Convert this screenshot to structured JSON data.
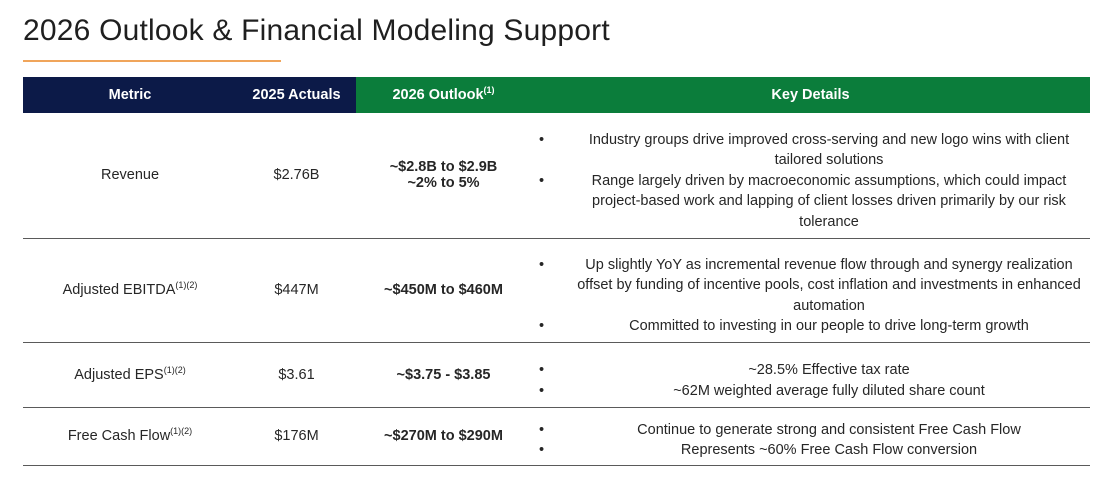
{
  "page": {
    "title": "2026 Outlook & Financial Modeling Support"
  },
  "colors": {
    "header_navy": "#0c1a48",
    "header_green": "#0b7d3b",
    "title_rule": "#f0a55b"
  },
  "table": {
    "headers": {
      "metric": "Metric",
      "actuals": "2025 Actuals",
      "outlook": "2026 Outlook",
      "outlook_sup": "(1)",
      "details": "Key Details"
    },
    "rows": [
      {
        "metric": "Revenue",
        "metric_sup": "",
        "actual": "$2.76B",
        "outlook_line1": "~$2.8B to $2.9B",
        "outlook_line2": "~2% to 5%",
        "bullets": [
          "Industry groups drive improved cross-serving and new logo wins with client tailored solutions",
          "Range largely driven by macroeconomic assumptions, which could impact project-based work and lapping of client losses driven primarily by our risk tolerance"
        ]
      },
      {
        "metric": "Adjusted EBITDA",
        "metric_sup": "(1)(2)",
        "actual": "$447M",
        "outlook_line1": "~$450M to $460M",
        "bullets": [
          "Up slightly YoY as incremental revenue flow through and synergy realization offset by funding of incentive pools, cost inflation and investments in enhanced automation",
          "Committed to investing in our people to drive long-term growth"
        ]
      },
      {
        "metric": "Adjusted EPS",
        "metric_sup": "(1)(2)",
        "actual": "$3.61",
        "outlook_line1": "~$3.75 - $3.85",
        "bullets": [
          "~28.5% Effective tax rate",
          "~62M weighted average fully diluted share count"
        ]
      },
      {
        "metric": "Free Cash Flow",
        "metric_sup": "(1)(2)",
        "actual": "$176M",
        "outlook_line1": "~$270M to $290M",
        "bullets": [
          "Continue to generate strong and consistent Free Cash Flow",
          "Represents ~60% Free Cash Flow conversion"
        ]
      }
    ]
  }
}
